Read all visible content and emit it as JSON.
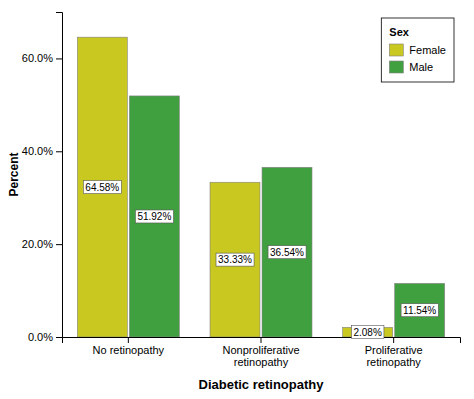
{
  "chart_data": {
    "type": "bar",
    "categories": [
      "No retinopathy",
      "Nonproliferative\nretinopathy",
      "Proliferative\nretinopathy"
    ],
    "series": [
      {
        "name": "Female",
        "color": "#C8C820",
        "values": [
          64.58,
          33.33,
          2.08
        ],
        "value_labels": [
          "64.58%",
          "33.33%",
          "2.08%"
        ]
      },
      {
        "name": "Male",
        "color": "#40A040",
        "values": [
          51.92,
          36.54,
          11.54
        ],
        "value_labels": [
          "51.92%",
          "36.54%",
          "11.54%"
        ]
      }
    ],
    "xlabel": "Diabetic retinopathy",
    "ylabel": "Percent",
    "ylim": [
      0,
      70
    ],
    "yticks": [
      {
        "value": 0,
        "label": "0.0%"
      },
      {
        "value": 20,
        "label": "20.0%"
      },
      {
        "value": 40,
        "label": "40.0%"
      },
      {
        "value": 60,
        "label": "60.0%"
      }
    ],
    "legend_title": "Sex",
    "legend": "upper right",
    "data_labels": true,
    "grid": false
  }
}
